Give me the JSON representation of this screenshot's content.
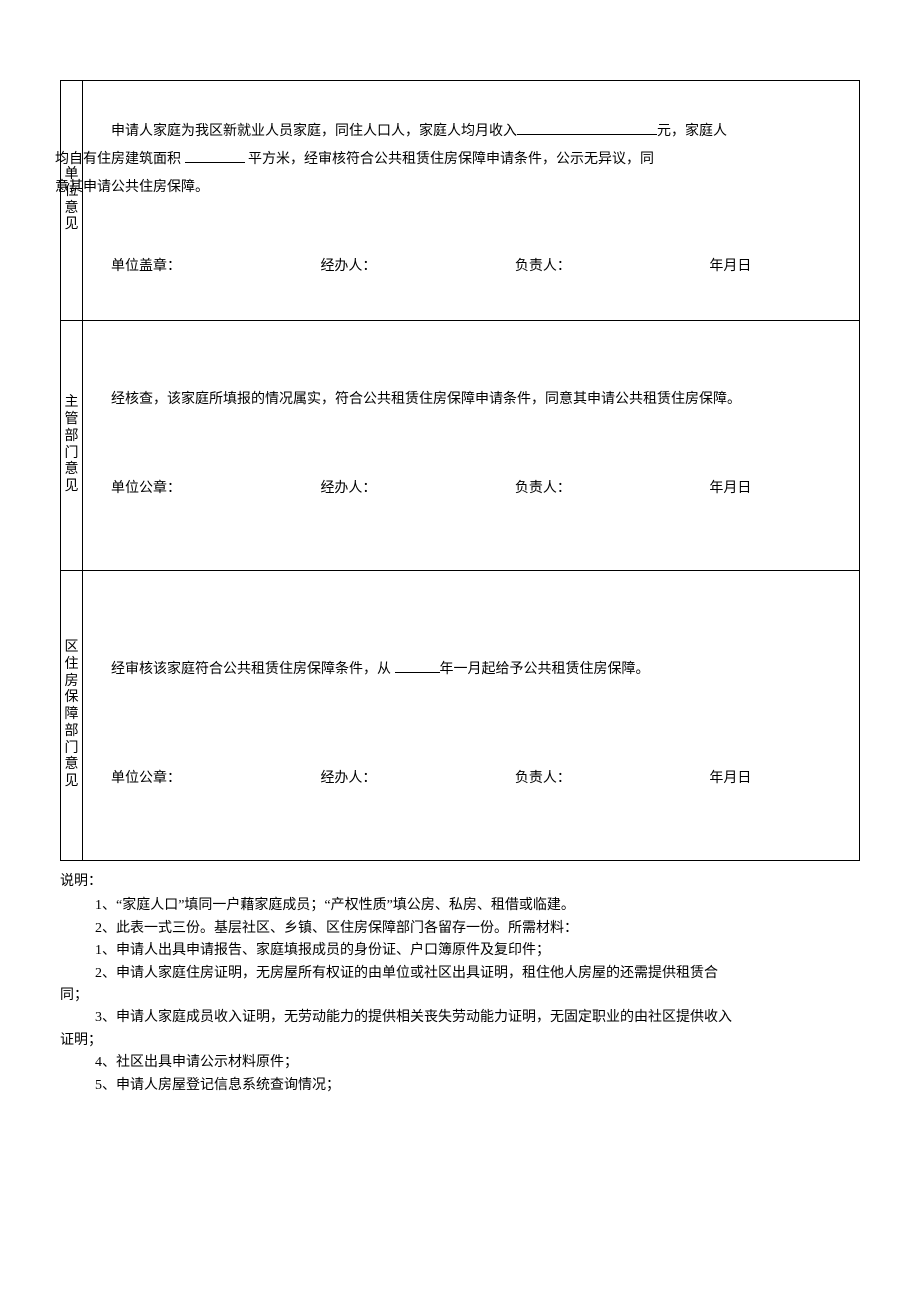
{
  "sections": {
    "unit": {
      "label": "单位意见",
      "paragraph_parts": {
        "p1": "申请人家庭为我区新就业人员家庭，同住人口人，家庭人均月收入",
        "p2": "元，家庭人",
        "p3": "均自有住房建筑面积",
        "p4": "平方米，经审核符合公共租赁住房保障申请条件，公示无异议，同",
        "p5": "意其申请公共住房保障。"
      },
      "sign": {
        "seal": "单位盖章：",
        "handler": "经办人：",
        "responsible": "负责人：",
        "date": "年月日"
      }
    },
    "dept": {
      "label": "主管部门意见",
      "paragraph": "经核查，该家庭所填报的情况属实，符合公共租赁住房保障申请条件，同意其申请公共租赁住房保障。",
      "sign": {
        "seal": "单位公章：",
        "handler": "经办人：",
        "responsible": "负责人：",
        "date": "年月日"
      }
    },
    "district": {
      "label": "区住房保障部门意见",
      "paragraph_parts": {
        "p1": "经审核该家庭符合公共租赁住房保障条件，从",
        "p2": "年一月起给予公共租赁住房保障。"
      },
      "sign": {
        "seal": "单位公章：",
        "handler": "经办人：",
        "responsible": "负责人：",
        "date": "年月日"
      }
    }
  },
  "notes": {
    "title": "说明：",
    "items": {
      "n1": "1、“家庭人口”填同一户藉家庭成员；“产权性质”填公房、私房、租借或临建。",
      "n2": "2、此表一式三份。基层社区、乡镇、区住房保障部门各留存一份。所需材料：",
      "n3": "1、申请人出具申请报告、家庭填报成员的身份证、户口簿原件及复印件；",
      "n4a": "2、申请人家庭住房证明，无房屋所有权证的由单位或社区出具证明，租住他人房屋的还需提供租赁合",
      "n4b": "同；",
      "n5a": "3、申请人家庭成员收入证明，无劳动能力的提供相关丧失劳动能力证明，无固定职业的由社区提供收入",
      "n5b": "证明；",
      "n6": "4、社区出具申请公示材料原件；",
      "n7": "5、申请人房屋登记信息系统查询情况；"
    }
  },
  "colors": {
    "text": "#000000",
    "background": "#ffffff",
    "border": "#000000"
  }
}
